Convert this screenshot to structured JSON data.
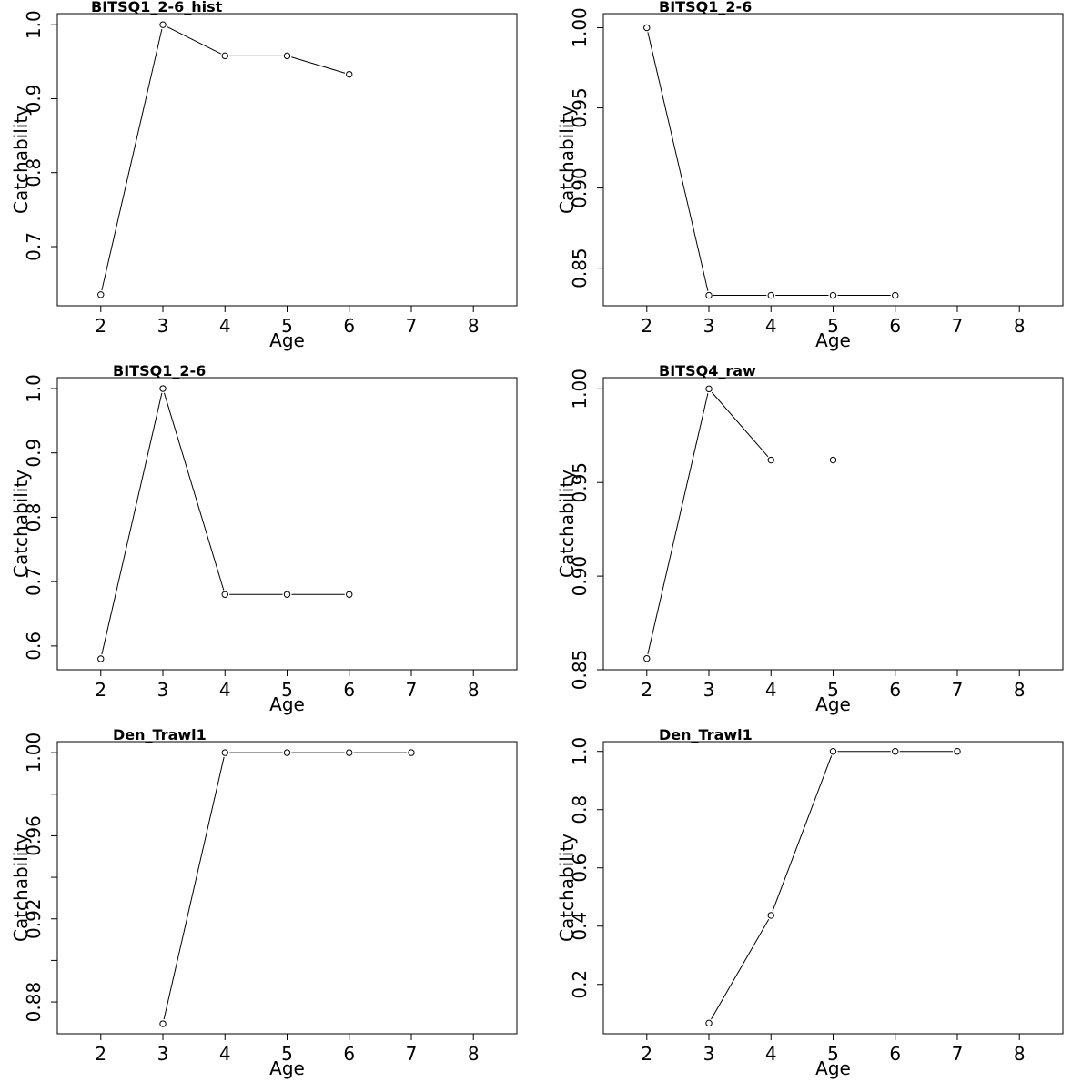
{
  "figure": {
    "background": "#ffffff",
    "line_color": "#000000"
  },
  "chart_data": [
    {
      "type": "line",
      "title": "BITSQ1_2-6_hist",
      "xlabel": "Age",
      "ylabel": "Catchability",
      "xlim": [
        1.3,
        8.7
      ],
      "ylim": [
        0.62,
        1.015
      ],
      "xticks": [
        2,
        3,
        4,
        5,
        6,
        7,
        8
      ],
      "yticks": [
        0.7,
        0.8,
        0.9,
        1.0
      ],
      "ytick_labels": [
        "0.7",
        "0.8",
        "0.9",
        "1.0"
      ],
      "x": [
        2,
        3,
        4,
        5,
        6
      ],
      "y": [
        0.635,
        1.0,
        0.958,
        0.958,
        0.933
      ]
    },
    {
      "type": "line",
      "title": "BITSQ1_2-6",
      "xlabel": "Age",
      "ylabel": "Catchability",
      "xlim": [
        1.3,
        8.7
      ],
      "ylim": [
        0.8265,
        1.0088
      ],
      "xticks": [
        2,
        3,
        4,
        5,
        6,
        7,
        8
      ],
      "yticks": [
        0.85,
        0.9,
        0.95,
        1.0
      ],
      "ytick_labels": [
        "0.85",
        "0.90",
        "0.95",
        "1.00"
      ],
      "x": [
        2,
        3,
        4,
        5,
        6
      ],
      "y": [
        1.0,
        0.833,
        0.833,
        0.833,
        0.833
      ]
    },
    {
      "type": "line",
      "title": "BITSQ1_2-6",
      "xlabel": "Age",
      "ylabel": "Catchability",
      "xlim": [
        1.3,
        8.7
      ],
      "ylim": [
        0.563,
        1.017
      ],
      "xticks": [
        2,
        3,
        4,
        5,
        6,
        7,
        8
      ],
      "yticks": [
        0.6,
        0.7,
        0.8,
        0.9,
        1.0
      ],
      "ytick_labels": [
        "0.6",
        "0.7",
        "0.8",
        "0.9",
        "1.0"
      ],
      "x": [
        2,
        3,
        4,
        5,
        6
      ],
      "y": [
        0.58,
        1.0,
        0.68,
        0.68,
        0.68
      ]
    },
    {
      "type": "line",
      "title": "BITSQ4_raw",
      "xlabel": "Age",
      "ylabel": "Catchability",
      "xlim": [
        1.3,
        8.7
      ],
      "ylim": [
        0.85,
        1.006
      ],
      "xticks": [
        2,
        3,
        4,
        5,
        6,
        7,
        8
      ],
      "yticks": [
        0.85,
        0.9,
        0.95,
        1.0
      ],
      "ytick_labels": [
        "0.85",
        "0.90",
        "0.95",
        "1.00"
      ],
      "x": [
        2,
        3,
        4,
        5
      ],
      "y": [
        0.856,
        1.0,
        0.962,
        0.962
      ]
    },
    {
      "type": "line",
      "title": "Den_Trawl1",
      "xlabel": "Age",
      "ylabel": "Catchability",
      "xlim": [
        1.3,
        8.7
      ],
      "ylim": [
        0.8647,
        1.0053
      ],
      "xticks": [
        2,
        3,
        4,
        5,
        6,
        7,
        8
      ],
      "yticks": [
        0.88,
        0.9,
        0.92,
        0.94,
        0.96,
        0.98,
        1.0
      ],
      "ytick_labels": [
        "0.88",
        "",
        "0.92",
        "",
        "0.96",
        "",
        "1.00"
      ],
      "x": [
        3,
        4,
        5,
        6,
        7
      ],
      "y": [
        0.8695,
        1.0,
        1.0,
        1.0,
        1.0
      ]
    },
    {
      "type": "line",
      "title": "Den_Trawl1",
      "xlabel": "Age",
      "ylabel": "Catchability",
      "xlim": [
        1.3,
        8.7
      ],
      "ylim": [
        0.0305,
        1.0335
      ],
      "xticks": [
        2,
        3,
        4,
        5,
        6,
        7,
        8
      ],
      "yticks": [
        0.2,
        0.4,
        0.6,
        0.8,
        1.0
      ],
      "ytick_labels": [
        "0.2",
        "0.4",
        "0.6",
        "0.8",
        "1.0"
      ],
      "x": [
        3,
        4,
        5,
        6,
        7
      ],
      "y": [
        0.067,
        0.437,
        1.0,
        1.0,
        1.0
      ]
    }
  ]
}
